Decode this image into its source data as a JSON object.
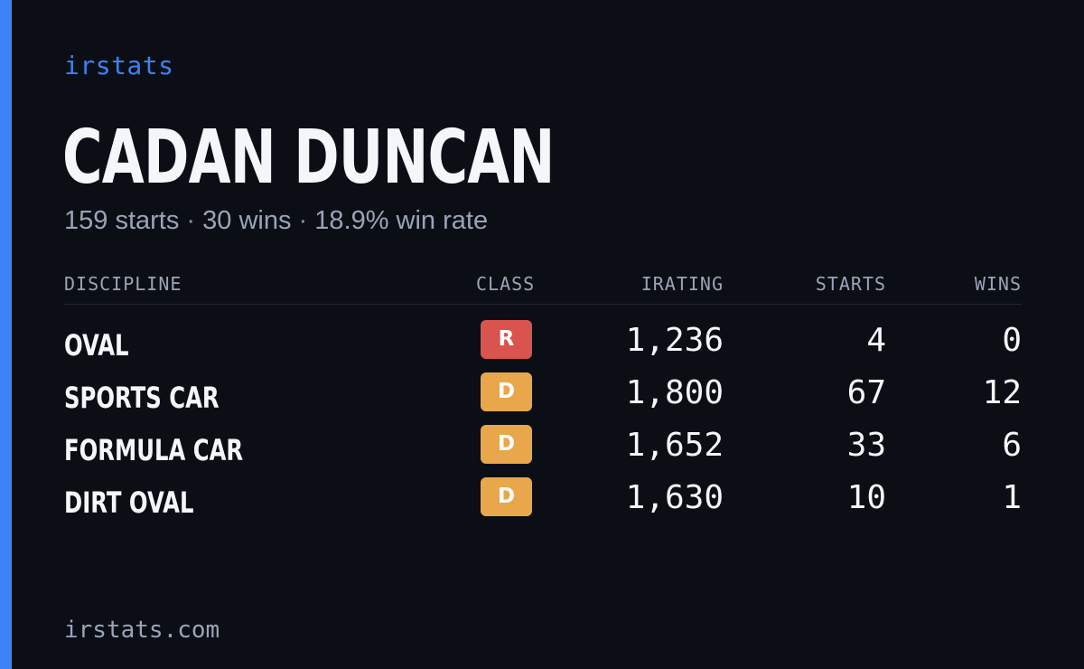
{
  "brand": {
    "name": "irstats"
  },
  "driver": {
    "name": "CADAN DUNCAN",
    "starts_text": "159 starts",
    "wins_text": "30 wins",
    "win_rate_text": "18.9% win rate",
    "separator": "·"
  },
  "table": {
    "headers": {
      "discipline": "DISCIPLINE",
      "class": "CLASS",
      "irating": "IRATING",
      "starts": "STARTS",
      "wins": "WINS"
    },
    "rows": [
      {
        "discipline": "OVAL",
        "class": "R",
        "class_color": "#d9534f",
        "irating": "1,236",
        "starts": "4",
        "wins": "0"
      },
      {
        "discipline": "SPORTS CAR",
        "class": "D",
        "class_color": "#e8a74a",
        "irating": "1,800",
        "starts": "67",
        "wins": "12"
      },
      {
        "discipline": "FORMULA CAR",
        "class": "D",
        "class_color": "#e8a74a",
        "irating": "1,652",
        "starts": "33",
        "wins": "6"
      },
      {
        "discipline": "DIRT OVAL",
        "class": "D",
        "class_color": "#e8a74a",
        "irating": "1,630",
        "starts": "10",
        "wins": "1"
      }
    ]
  },
  "footer": {
    "domain": "irstats.com"
  },
  "colors": {
    "background": "#0b0e15",
    "accent": "#3b82f6",
    "class_r": "#d9534f",
    "class_d": "#e8a74a"
  }
}
